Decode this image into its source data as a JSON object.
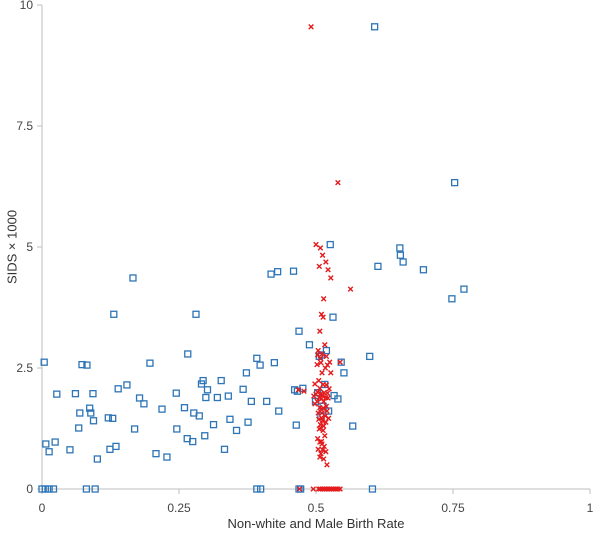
{
  "chart_data": {
    "type": "scatter",
    "title": "",
    "xlabel": "Non-white and Male Birth Rate",
    "ylabel": "SIDS × 1000",
    "xlim": [
      0,
      1
    ],
    "ylim": [
      0,
      10
    ],
    "x_ticks": [
      0,
      0.25,
      0.5,
      0.75,
      1
    ],
    "x_tick_labels": [
      "0",
      "0.25",
      "0.5",
      "0.75",
      "1"
    ],
    "y_ticks": [
      0,
      2.5,
      5,
      7.5,
      10
    ],
    "y_tick_labels": [
      "0",
      "2.5",
      "5",
      "7.5",
      "10"
    ],
    "grid": false,
    "legend": "none",
    "series": [
      {
        "marker": "open-square",
        "color": "#2e75b6",
        "points": [
          [
            0.004,
            2.62
          ],
          [
            0.007,
            0.93
          ],
          [
            0.013,
            0.77
          ],
          [
            0.024,
            0.97
          ],
          [
            0.027,
            1.96
          ],
          [
            0.051,
            0.81
          ],
          [
            0.061,
            1.97
          ],
          [
            0.067,
            1.26
          ],
          [
            0.069,
            1.57
          ],
          [
            0.073,
            2.57
          ],
          [
            0.082,
            2.56
          ],
          [
            0.087,
            1.67
          ],
          [
            0.089,
            1.57
          ],
          [
            0.093,
            1.97
          ],
          [
            0.094,
            1.41
          ],
          [
            0.101,
            0.62
          ],
          [
            0.121,
            1.47
          ],
          [
            0.124,
            0.82
          ],
          [
            0.129,
            1.46
          ],
          [
            0.131,
            3.61
          ],
          [
            0.135,
            0.88
          ],
          [
            0.139,
            2.07
          ],
          [
            0.155,
            2.15
          ],
          [
            0.166,
            4.36
          ],
          [
            0.169,
            1.24
          ],
          [
            0.178,
            1.88
          ],
          [
            0.186,
            1.76
          ],
          [
            0.197,
            2.6
          ],
          [
            0.208,
            0.73
          ],
          [
            0.219,
            1.65
          ],
          [
            0.228,
            0.66
          ],
          [
            0.245,
            1.98
          ],
          [
            0.246,
            1.24
          ],
          [
            0.26,
            1.68
          ],
          [
            0.265,
            1.04
          ],
          [
            0.266,
            2.79
          ],
          [
            0.275,
            0.98
          ],
          [
            0.277,
            1.57
          ],
          [
            0.281,
            3.61
          ],
          [
            0.287,
            1.51
          ],
          [
            0.291,
            2.17
          ],
          [
            0.294,
            2.24
          ],
          [
            0.297,
            1.1
          ],
          [
            0.299,
            1.89
          ],
          [
            0.302,
            2.05
          ],
          [
            0.313,
            1.33
          ],
          [
            0.32,
            1.89
          ],
          [
            0.327,
            2.24
          ],
          [
            0.333,
            0.82
          ],
          [
            0.34,
            1.92
          ],
          [
            0.343,
            1.44
          ],
          [
            0.355,
            1.21
          ],
          [
            0.367,
            2.06
          ],
          [
            0.373,
            2.4
          ],
          [
            0.376,
            1.38
          ],
          [
            0.382,
            1.81
          ],
          [
            0.392,
            2.7
          ],
          [
            0.398,
            2.56
          ],
          [
            0.41,
            1.81
          ],
          [
            0.418,
            4.44
          ],
          [
            0.424,
            2.61
          ],
          [
            0.43,
            4.49
          ],
          [
            0.432,
            1.61
          ],
          [
            0.459,
            4.5
          ],
          [
            0.461,
            2.05
          ],
          [
            0.464,
            1.32
          ],
          [
            0.466,
            2.02
          ],
          [
            0.469,
            3.26
          ],
          [
            0.476,
            2.08
          ],
          [
            0.488,
            2.98
          ],
          [
            0.499,
            1.81
          ],
          [
            0.503,
            1.99
          ],
          [
            0.506,
            2.74
          ],
          [
            0.509,
            1.51
          ],
          [
            0.51,
            2.77
          ],
          [
            0.513,
            1.71
          ],
          [
            0.516,
            2.16
          ],
          [
            0.519,
            2.86
          ],
          [
            0.523,
            1.61
          ],
          [
            0.526,
            5.05
          ],
          [
            0.531,
            3.55
          ],
          [
            0.533,
            1.93
          ],
          [
            0.54,
            1.86
          ],
          [
            0.546,
            2.62
          ],
          [
            0.551,
            2.4
          ],
          [
            0.567,
            1.3
          ],
          [
            0.598,
            2.74
          ],
          [
            0.607,
            9.55
          ],
          [
            0.613,
            4.6
          ],
          [
            0.653,
            4.98
          ],
          [
            0.654,
            4.83
          ],
          [
            0.659,
            4.69
          ],
          [
            0.696,
            4.53
          ],
          [
            0.748,
            3.93
          ],
          [
            0.753,
            6.33
          ],
          [
            0.77,
            4.13
          ],
          [
            0.0,
            0.0
          ],
          [
            0.006,
            0.0
          ],
          [
            0.013,
            0.0
          ],
          [
            0.021,
            0.0
          ],
          [
            0.081,
            0.0
          ],
          [
            0.097,
            0.0
          ],
          [
            0.392,
            0.0
          ],
          [
            0.399,
            0.0
          ],
          [
            0.469,
            0.0
          ],
          [
            0.472,
            0.0
          ],
          [
            0.603,
            0.0
          ]
        ]
      },
      {
        "marker": "x",
        "color": "#e41a1c",
        "points": [
          [
            0.491,
            9.55
          ],
          [
            0.54,
            6.33
          ],
          [
            0.563,
            4.13
          ],
          [
            0.5,
            5.05
          ],
          [
            0.508,
            4.98
          ],
          [
            0.512,
            4.83
          ],
          [
            0.518,
            4.69
          ],
          [
            0.522,
            4.53
          ],
          [
            0.527,
            4.36
          ],
          [
            0.506,
            4.6
          ],
          [
            0.514,
            3.93
          ],
          [
            0.51,
            3.61
          ],
          [
            0.513,
            3.55
          ],
          [
            0.507,
            3.26
          ],
          [
            0.516,
            2.98
          ],
          [
            0.504,
            2.86
          ],
          [
            0.511,
            2.79
          ],
          [
            0.503,
            2.77
          ],
          [
            0.519,
            2.74
          ],
          [
            0.508,
            2.7
          ],
          [
            0.525,
            2.62
          ],
          [
            0.509,
            2.61
          ],
          [
            0.544,
            2.62
          ],
          [
            0.502,
            2.57
          ],
          [
            0.521,
            2.56
          ],
          [
            0.517,
            2.5
          ],
          [
            0.511,
            2.4
          ],
          [
            0.527,
            2.4
          ],
          [
            0.505,
            2.24
          ],
          [
            0.498,
            2.17
          ],
          [
            0.513,
            2.16
          ],
          [
            0.519,
            2.15
          ],
          [
            0.507,
            2.08
          ],
          [
            0.524,
            2.07
          ],
          [
            0.468,
            2.05
          ],
          [
            0.478,
            2.02
          ],
          [
            0.503,
            2.0
          ],
          [
            0.515,
            1.99
          ],
          [
            0.521,
            1.98
          ],
          [
            0.509,
            1.97
          ],
          [
            0.5,
            1.96
          ],
          [
            0.512,
            1.93
          ],
          [
            0.496,
            1.92
          ],
          [
            0.518,
            1.89
          ],
          [
            0.506,
            1.89
          ],
          [
            0.522,
            1.88
          ],
          [
            0.51,
            1.86
          ],
          [
            0.502,
            1.81
          ],
          [
            0.514,
            1.81
          ],
          [
            0.498,
            1.76
          ],
          [
            0.519,
            1.71
          ],
          [
            0.507,
            1.68
          ],
          [
            0.513,
            1.67
          ],
          [
            0.509,
            1.65
          ],
          [
            0.52,
            1.61
          ],
          [
            0.511,
            1.57
          ],
          [
            0.504,
            1.57
          ],
          [
            0.517,
            1.51
          ],
          [
            0.51,
            1.47
          ],
          [
            0.523,
            1.46
          ],
          [
            0.505,
            1.44
          ],
          [
            0.512,
            1.41
          ],
          [
            0.518,
            1.38
          ],
          [
            0.508,
            1.33
          ],
          [
            0.514,
            1.3
          ],
          [
            0.509,
            1.26
          ],
          [
            0.506,
            1.24
          ],
          [
            0.513,
            1.21
          ],
          [
            0.516,
            1.1
          ],
          [
            0.503,
            1.04
          ],
          [
            0.51,
            0.98
          ],
          [
            0.507,
            0.97
          ],
          [
            0.511,
            0.93
          ],
          [
            0.515,
            0.88
          ],
          [
            0.504,
            0.82
          ],
          [
            0.512,
            0.81
          ],
          [
            0.518,
            0.77
          ],
          [
            0.509,
            0.73
          ],
          [
            0.507,
            0.66
          ],
          [
            0.514,
            0.62
          ],
          [
            0.52,
            0.5
          ],
          [
            0.47,
            0.0
          ],
          [
            0.495,
            0.0
          ],
          [
            0.505,
            0.0
          ],
          [
            0.508,
            0.0
          ],
          [
            0.512,
            0.0
          ],
          [
            0.516,
            0.0
          ],
          [
            0.52,
            0.0
          ],
          [
            0.524,
            0.0
          ],
          [
            0.528,
            0.0
          ],
          [
            0.532,
            0.0
          ],
          [
            0.536,
            0.0
          ],
          [
            0.54,
            0.0
          ],
          [
            0.544,
            0.0
          ]
        ]
      }
    ]
  }
}
